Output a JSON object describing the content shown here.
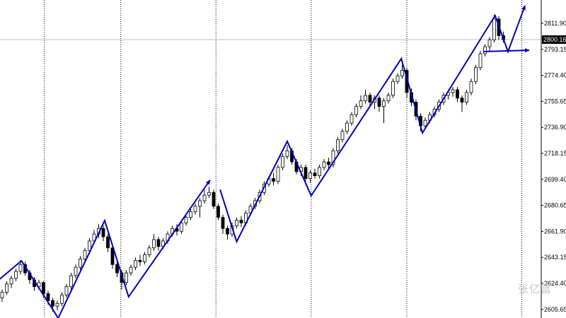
{
  "chart_data": {
    "type": "candlestick",
    "title": "",
    "xlabel": "",
    "ylabel": "",
    "ylim": [
      2600.0,
      2830.0
    ],
    "y_ticks": [
      "2811.90",
      "2793.15",
      "2774.40",
      "2755.65",
      "2736.90",
      "2718.15",
      "2699.40",
      "2680.65",
      "2661.90",
      "2643.15",
      "2624.40",
      "2605.65"
    ],
    "current_price": "2800.16",
    "grid": "vertical dotted separators only",
    "colors": {
      "bull_body": "#ffffff",
      "bear_body": "#000000",
      "wick": "#000000",
      "zigzag": "#0000b4",
      "price_line": "#c0c0c0"
    },
    "candles_ohlc": [
      [
        2614,
        2620,
        2611,
        2618
      ],
      [
        2618,
        2626,
        2616,
        2624
      ],
      [
        2624,
        2630,
        2621,
        2628
      ],
      [
        2628,
        2635,
        2626,
        2633
      ],
      [
        2633,
        2641,
        2631,
        2638
      ],
      [
        2638,
        2640,
        2630,
        2632
      ],
      [
        2632,
        2634,
        2624,
        2627
      ],
      [
        2627,
        2629,
        2619,
        2622
      ],
      [
        2622,
        2627,
        2620,
        2625
      ],
      [
        2625,
        2626,
        2614,
        2617
      ],
      [
        2617,
        2619,
        2609,
        2612
      ],
      [
        2612,
        2614,
        2604,
        2608
      ],
      [
        2608,
        2612,
        2605,
        2610
      ],
      [
        2610,
        2618,
        2608,
        2616
      ],
      [
        2616,
        2624,
        2614,
        2622
      ],
      [
        2622,
        2632,
        2620,
        2630
      ],
      [
        2630,
        2638,
        2628,
        2636
      ],
      [
        2636,
        2644,
        2634,
        2642
      ],
      [
        2642,
        2650,
        2640,
        2648
      ],
      [
        2648,
        2657,
        2646,
        2655
      ],
      [
        2655,
        2663,
        2653,
        2660
      ],
      [
        2660,
        2667,
        2657,
        2664
      ],
      [
        2664,
        2666,
        2655,
        2658
      ],
      [
        2658,
        2660,
        2647,
        2650
      ],
      [
        2650,
        2653,
        2635,
        2638
      ],
      [
        2638,
        2642,
        2629,
        2632
      ],
      [
        2632,
        2634,
        2620,
        2625
      ],
      [
        2625,
        2634,
        2623,
        2632
      ],
      [
        2632,
        2638,
        2630,
        2636
      ],
      [
        2636,
        2643,
        2634,
        2641
      ],
      [
        2641,
        2645,
        2637,
        2640
      ],
      [
        2640,
        2647,
        2638,
        2645
      ],
      [
        2645,
        2652,
        2643,
        2650
      ],
      [
        2650,
        2660,
        2648,
        2656
      ],
      [
        2656,
        2658,
        2648,
        2651
      ],
      [
        2651,
        2657,
        2649,
        2655
      ],
      [
        2655,
        2662,
        2653,
        2660
      ],
      [
        2660,
        2666,
        2658,
        2664
      ],
      [
        2664,
        2667,
        2659,
        2662
      ],
      [
        2662,
        2670,
        2660,
        2668
      ],
      [
        2668,
        2674,
        2666,
        2672
      ],
      [
        2672,
        2678,
        2670,
        2676
      ],
      [
        2676,
        2682,
        2674,
        2680
      ],
      [
        2680,
        2686,
        2672,
        2684
      ],
      [
        2684,
        2692,
        2682,
        2688
      ],
      [
        2688,
        2694,
        2686,
        2690
      ],
      [
        2690,
        2692,
        2678,
        2680
      ],
      [
        2680,
        2682,
        2670,
        2672
      ],
      [
        2672,
        2674,
        2660,
        2664
      ],
      [
        2664,
        2666,
        2656,
        2660
      ],
      [
        2660,
        2668,
        2658,
        2666
      ],
      [
        2666,
        2672,
        2664,
        2670
      ],
      [
        2670,
        2673,
        2665,
        2668
      ],
      [
        2668,
        2677,
        2666,
        2675
      ],
      [
        2675,
        2682,
        2673,
        2680
      ],
      [
        2680,
        2686,
        2678,
        2684
      ],
      [
        2684,
        2692,
        2682,
        2690
      ],
      [
        2690,
        2698,
        2688,
        2696
      ],
      [
        2696,
        2702,
        2694,
        2700
      ],
      [
        2700,
        2704,
        2695,
        2698
      ],
      [
        2698,
        2710,
        2696,
        2708
      ],
      [
        2708,
        2718,
        2706,
        2716
      ],
      [
        2716,
        2724,
        2714,
        2720
      ],
      [
        2720,
        2722,
        2710,
        2712
      ],
      [
        2712,
        2714,
        2703,
        2705
      ],
      [
        2705,
        2710,
        2702,
        2708
      ],
      [
        2708,
        2710,
        2698,
        2700
      ],
      [
        2700,
        2706,
        2697,
        2704
      ],
      [
        2704,
        2707,
        2700,
        2702
      ],
      [
        2702,
        2710,
        2700,
        2708
      ],
      [
        2708,
        2714,
        2706,
        2712
      ],
      [
        2712,
        2715,
        2707,
        2710
      ],
      [
        2710,
        2722,
        2708,
        2720
      ],
      [
        2720,
        2730,
        2718,
        2728
      ],
      [
        2728,
        2736,
        2726,
        2734
      ],
      [
        2734,
        2742,
        2732,
        2740
      ],
      [
        2740,
        2748,
        2738,
        2746
      ],
      [
        2746,
        2754,
        2744,
        2752
      ],
      [
        2752,
        2760,
        2750,
        2756
      ],
      [
        2756,
        2764,
        2754,
        2760
      ],
      [
        2760,
        2762,
        2752,
        2755
      ],
      [
        2755,
        2760,
        2750,
        2758
      ],
      [
        2758,
        2760,
        2748,
        2752
      ],
      [
        2752,
        2758,
        2740,
        2756
      ],
      [
        2756,
        2762,
        2754,
        2760
      ],
      [
        2760,
        2772,
        2758,
        2770
      ],
      [
        2770,
        2776,
        2768,
        2774
      ],
      [
        2774,
        2782,
        2772,
        2778
      ],
      [
        2778,
        2780,
        2758,
        2762
      ],
      [
        2762,
        2765,
        2752,
        2755
      ],
      [
        2755,
        2757,
        2742,
        2745
      ],
      [
        2745,
        2747,
        2734,
        2738
      ],
      [
        2738,
        2744,
        2736,
        2742
      ],
      [
        2742,
        2748,
        2740,
        2746
      ],
      [
        2746,
        2752,
        2744,
        2750
      ],
      [
        2750,
        2757,
        2748,
        2755
      ],
      [
        2755,
        2762,
        2753,
        2760
      ],
      [
        2760,
        2764,
        2757,
        2762
      ],
      [
        2762,
        2766,
        2759,
        2764
      ],
      [
        2764,
        2766,
        2755,
        2758
      ],
      [
        2758,
        2760,
        2748,
        2755
      ],
      [
        2755,
        2764,
        2753,
        2762
      ],
      [
        2762,
        2772,
        2760,
        2770
      ],
      [
        2770,
        2782,
        2768,
        2780
      ],
      [
        2780,
        2792,
        2778,
        2790
      ],
      [
        2790,
        2797,
        2788,
        2795
      ],
      [
        2795,
        2802,
        2792,
        2800
      ],
      [
        2800,
        2818,
        2798,
        2815
      ],
      [
        2815,
        2817,
        2800,
        2803
      ],
      [
        2803,
        2806,
        2798,
        2800.16
      ]
    ],
    "separator_bar_indices": [
      9.2,
      25.8,
      46.5,
      67.2,
      88,
      113
    ],
    "zigzag_lines": [
      {
        "points": [
          [
            -0.5,
            2627.5
          ],
          [
            4.2,
            2640.7
          ],
          [
            12.2,
            2599.4
          ],
          [
            22.3,
            2669.7
          ],
          [
            27.5,
            2614.7
          ],
          [
            45.2,
            2698.8
          ]
        ],
        "arrow_end": true
      },
      {
        "points": [
          [
            47.4,
            2692.0
          ],
          [
            51,
            2654.5
          ],
          [
            62,
            2726.8
          ],
          [
            67.2,
            2687.6
          ],
          [
            86.8,
            2786.4
          ],
          [
            91.4,
            2732.9
          ],
          [
            107.2,
            2817.5
          ],
          [
            110,
            2791.5
          ],
          [
            113.7,
            2824.6
          ]
        ],
        "arrow_end": true
      },
      {
        "points": [
          [
            104.6,
            2791.5
          ],
          [
            114.6,
            2792.5
          ]
        ],
        "arrow_end": true
      }
    ]
  },
  "watermark": "张亿富"
}
